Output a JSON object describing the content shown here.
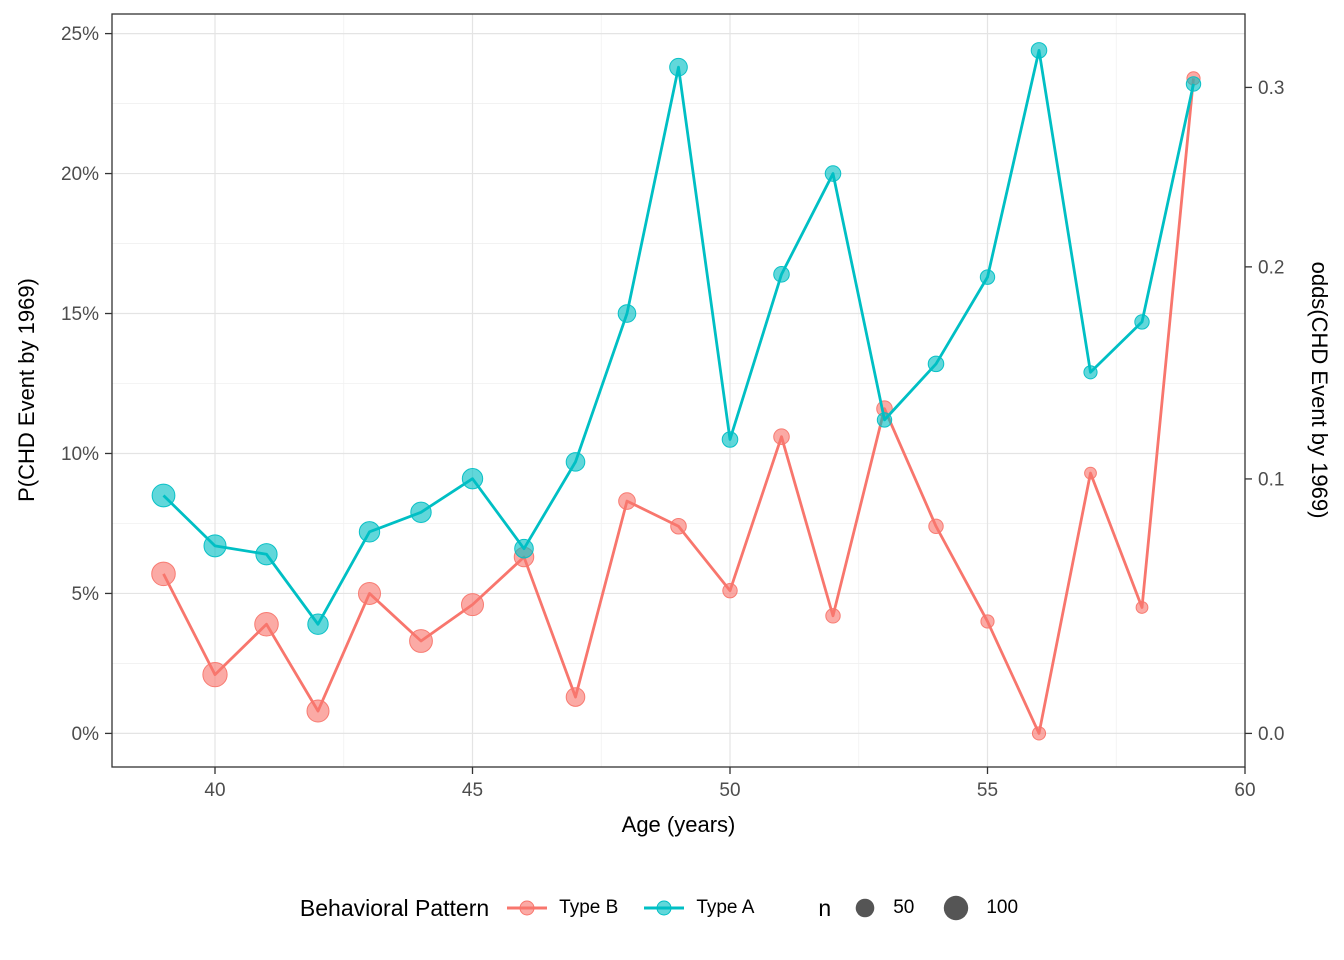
{
  "chart_data": {
    "type": "line",
    "title": "",
    "xlabel": "Age (years)",
    "ylabel_left": "P(CHD Event by 1969)",
    "ylabel_right": "odds(CHD Event by 1969)",
    "xlim": [
      38,
      60
    ],
    "ylim_percent": [
      -1.2,
      25.7
    ],
    "grid": true,
    "x_ticks": [
      40,
      45,
      50,
      55,
      60
    ],
    "x_minor": [
      42.5,
      47.5,
      52.5,
      57.5
    ],
    "y_ticks_left": {
      "values": [
        0,
        5,
        10,
        15,
        20,
        25
      ],
      "labels": [
        "0%",
        "5%",
        "10%",
        "15%",
        "20%",
        "25%"
      ]
    },
    "y_minor": [
      2.5,
      7.5,
      12.5,
      17.5,
      22.5
    ],
    "y_ticks_right": {
      "values": [
        0.0,
        0.1,
        0.2,
        0.3
      ],
      "labels": [
        "0.0",
        "0.1",
        "0.2",
        "0.3"
      ],
      "transform": "odds: p = odds/(1+odds)"
    },
    "x": [
      39,
      40,
      41,
      42,
      43,
      44,
      45,
      46,
      47,
      48,
      49,
      50,
      51,
      52,
      53,
      54,
      55,
      56,
      57,
      58,
      59
    ],
    "series": [
      {
        "name": "Type B",
        "color": "#F8766D",
        "values_percent": [
          5.7,
          2.1,
          3.9,
          0.8,
          5.0,
          3.3,
          4.6,
          6.3,
          1.3,
          8.3,
          7.4,
          5.1,
          10.6,
          4.2,
          11.6,
          7.4,
          4.0,
          0.0,
          9.3,
          4.5,
          23.4
        ],
        "n": [
          80,
          85,
          80,
          70,
          70,
          75,
          70,
          55,
          50,
          40,
          35,
          30,
          35,
          30,
          35,
          30,
          25,
          25,
          20,
          20,
          25
        ]
      },
      {
        "name": "Type A",
        "color": "#00BFC4",
        "values_percent": [
          8.5,
          6.7,
          6.4,
          3.9,
          7.2,
          7.9,
          9.1,
          6.6,
          9.7,
          15.0,
          23.8,
          10.5,
          16.4,
          20.0,
          11.2,
          13.2,
          16.3,
          24.4,
          12.9,
          14.7,
          23.2
        ],
        "n": [
          75,
          70,
          65,
          60,
          60,
          60,
          60,
          50,
          50,
          45,
          45,
          35,
          35,
          35,
          30,
          35,
          30,
          35,
          25,
          30,
          30
        ]
      }
    ],
    "size_legend": {
      "title": "n",
      "values": [
        50,
        100
      ],
      "radius_px": [
        9.3,
        12.2
      ]
    }
  },
  "legend": {
    "title": "Behavioral Pattern"
  },
  "style": {
    "grid_major_color": "#e4e4e4",
    "grid_minor_color": "#f0f0f0",
    "panel_border_color": "#333333",
    "tick_color": "#333333",
    "tick_label_color": "#4d4d4d",
    "size_legend_dot_color": "#555555",
    "marker_fill_opacity": 0.62
  }
}
